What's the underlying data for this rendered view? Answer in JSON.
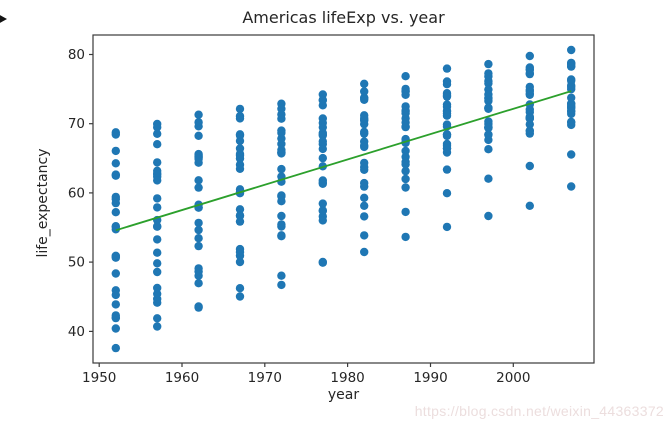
{
  "page": {
    "background": "#ffffff"
  },
  "bullet_icon": {
    "glyph": "right-arrow",
    "color": "#141414"
  },
  "watermark": {
    "text": "https://blog.csdn.net/weixin_44363372",
    "color": "#ecdede"
  },
  "chart_data": {
    "type": "scatter",
    "title": "Americas lifeExp vs. year",
    "xlabel": "year",
    "ylabel": "life_expectancy",
    "xlim": [
      1949.25,
      2009.75
    ],
    "ylim": [
      35.43,
      82.81
    ],
    "xticks": [
      1950,
      1960,
      1970,
      1980,
      1990,
      2000
    ],
    "yticks": [
      40,
      50,
      60,
      70,
      80
    ],
    "grid": false,
    "legend": "none",
    "marker_color": "#1f77b4",
    "marker_radius": 4.2,
    "axis_color": "#3a3a3a",
    "text_color": "#262626",
    "trendline": {
      "color": "#2ca02c",
      "width": 1.8,
      "x": [
        1952,
        2007
      ],
      "y": [
        54.6,
        74.7
      ]
    },
    "points": [
      {
        "year": 1952,
        "lifeExp": [
          62.48,
          40.41,
          50.92,
          68.75,
          54.74,
          50.64,
          57.21,
          59.42,
          45.93,
          48.36,
          45.26,
          42.02,
          37.58,
          41.91,
          58.53,
          50.79,
          42.31,
          55.19,
          62.65,
          43.9,
          64.28,
          59.1,
          68.44,
          66.07,
          55.09
        ]
      },
      {
        "year": 1957,
        "lifeExp": [
          64.4,
          41.89,
          53.28,
          69.96,
          56.07,
          55.12,
          62.84,
          62.33,
          49.83,
          51.36,
          48.57,
          44.14,
          40.7,
          44.67,
          62.61,
          55.19,
          45.43,
          59.2,
          63.2,
          46.26,
          68.54,
          61.8,
          69.49,
          67.04,
          57.91
        ]
      },
      {
        "year": 1962,
        "lifeExp": [
          65.14,
          43.43,
          55.67,
          71.3,
          57.92,
          57.86,
          65.42,
          65.25,
          53.46,
          54.64,
          52.31,
          46.95,
          43.59,
          48.04,
          65.61,
          58.3,
          48.63,
          61.82,
          64.36,
          49.1,
          69.62,
          64.9,
          70.21,
          68.25,
          60.77
        ]
      },
      {
        "year": 1967,
        "lifeExp": [
          65.63,
          45.03,
          57.63,
          72.13,
          60.52,
          59.96,
          66.41,
          68.29,
          56.75,
          56.68,
          55.86,
          50.02,
          46.24,
          50.92,
          67.51,
          60.11,
          51.88,
          64.07,
          64.95,
          51.45,
          71.1,
          65.4,
          70.76,
          68.47,
          63.48
        ]
      },
      {
        "year": 1972,
        "lifeExp": [
          67.07,
          46.71,
          59.5,
          72.88,
          63.44,
          61.62,
          67.85,
          70.72,
          59.63,
          58.8,
          56.67,
          53.74,
          48.04,
          53.88,
          69.0,
          62.36,
          55.15,
          66.22,
          65.82,
          55.45,
          72.16,
          65.9,
          71.34,
          68.67,
          65.71
        ]
      },
      {
        "year": 1977,
        "lifeExp": [
          68.48,
          50.02,
          61.49,
          74.21,
          67.05,
          63.84,
          70.75,
          72.65,
          61.79,
          61.31,
          56.6,
          56.03,
          49.92,
          57.4,
          70.11,
          65.03,
          57.47,
          68.68,
          66.35,
          58.45,
          73.44,
          68.3,
          73.38,
          69.48,
          67.46
        ]
      },
      {
        "year": 1982,
        "lifeExp": [
          69.94,
          53.86,
          63.34,
          75.76,
          70.56,
          66.65,
          73.45,
          73.72,
          63.73,
          64.34,
          56.6,
          58.14,
          51.46,
          60.91,
          71.21,
          67.41,
          59.3,
          70.47,
          66.87,
          61.41,
          73.75,
          68.83,
          74.65,
          70.81,
          68.56
        ]
      },
      {
        "year": 1987,
        "lifeExp": [
          70.77,
          57.25,
          65.21,
          76.86,
          72.49,
          67.77,
          74.75,
          74.17,
          66.05,
          67.23,
          63.15,
          60.78,
          53.64,
          64.49,
          71.77,
          69.5,
          62.01,
          71.52,
          67.38,
          64.13,
          74.63,
          69.58,
          75.02,
          71.92,
          70.19
        ]
      },
      {
        "year": 1992,
        "lifeExp": [
          71.87,
          59.96,
          67.06,
          77.95,
          74.13,
          68.42,
          75.71,
          74.41,
          68.46,
          69.61,
          66.8,
          63.37,
          55.09,
          66.4,
          71.77,
          71.46,
          65.84,
          72.46,
          68.23,
          66.46,
          73.91,
          69.86,
          76.09,
          72.75,
          71.15
        ]
      },
      {
        "year": 1997,
        "lifeExp": [
          73.28,
          62.05,
          69.39,
          78.61,
          75.82,
          70.31,
          77.26,
          76.15,
          69.96,
          72.31,
          69.54,
          66.32,
          56.67,
          67.66,
          72.26,
          73.67,
          68.43,
          73.74,
          69.4,
          68.39,
          74.92,
          69.47,
          76.81,
          74.22,
          72.15
        ]
      },
      {
        "year": 2002,
        "lifeExp": [
          74.34,
          63.88,
          71.01,
          79.77,
          77.86,
          71.68,
          78.12,
          77.16,
          70.85,
          74.17,
          70.73,
          68.98,
          58.14,
          68.57,
          72.05,
          74.9,
          70.84,
          74.71,
          70.76,
          69.91,
          77.78,
          68.98,
          77.31,
          75.31,
          72.77
        ]
      },
      {
        "year": 2007,
        "lifeExp": [
          75.32,
          65.55,
          72.39,
          80.65,
          78.55,
          72.89,
          78.78,
          78.27,
          72.24,
          74.99,
          71.88,
          70.26,
          60.92,
          70.2,
          72.57,
          76.2,
          72.9,
          75.54,
          71.75,
          71.42,
          78.75,
          69.82,
          78.24,
          76.38,
          73.75
        ]
      }
    ]
  }
}
